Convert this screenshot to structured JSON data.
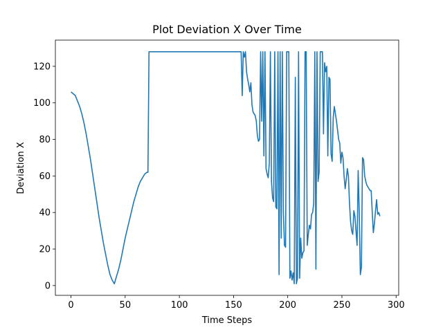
{
  "chart_data": {
    "type": "line",
    "title": "Plot Deviation X Over Time",
    "x_label": "Time Steps",
    "y_label": "Deviation X",
    "color": "#1f77b4",
    "x": [
      0,
      2,
      4,
      6,
      8,
      10,
      12,
      14,
      16,
      18,
      20,
      22,
      24,
      26,
      28,
      30,
      32,
      34,
      36,
      38,
      40,
      42,
      44,
      46,
      48,
      50,
      52,
      54,
      56,
      58,
      60,
      62,
      64,
      66,
      68,
      70,
      71,
      72,
      157,
      158,
      159,
      160,
      161,
      162,
      163,
      164,
      165,
      166,
      167,
      168,
      169,
      170,
      171,
      172,
      173,
      174,
      175,
      176,
      177,
      178,
      179,
      180,
      181,
      182,
      183,
      184,
      185,
      186,
      187,
      188,
      189,
      190,
      191,
      192,
      193,
      194,
      195,
      196,
      197,
      198,
      199,
      200,
      201,
      202,
      203,
      204,
      205,
      206,
      207,
      208,
      209,
      210,
      211,
      212,
      213,
      214,
      215,
      216,
      217,
      218,
      219,
      220,
      221,
      222,
      223,
      224,
      225,
      226,
      227,
      228,
      229,
      230,
      231,
      232,
      233,
      234,
      235,
      236,
      237,
      238,
      239,
      240,
      241,
      242,
      243,
      244,
      245,
      246,
      247,
      248,
      249,
      250,
      251,
      252,
      253,
      254,
      255,
      256,
      257,
      258,
      259,
      260,
      261,
      262,
      263,
      264,
      265,
      266,
      267,
      268,
      269,
      270,
      271,
      272,
      273,
      274,
      275,
      276,
      277,
      278,
      279,
      280,
      281,
      282,
      283,
      284,
      285
    ],
    "values": [
      106,
      105,
      104,
      101,
      98,
      94,
      89,
      83,
      76,
      69,
      61,
      53,
      45,
      37,
      30,
      23,
      17,
      11,
      6,
      3,
      1,
      5,
      9,
      14,
      20,
      26,
      31,
      36,
      41,
      46,
      50,
      54,
      57,
      59,
      61,
      62,
      62,
      128,
      128,
      104,
      128,
      125,
      128,
      117,
      113,
      110,
      106,
      111,
      99,
      95,
      94,
      93,
      90,
      82,
      79,
      80,
      128,
      90,
      128,
      71,
      128,
      64,
      61,
      59,
      67,
      128,
      57,
      48,
      46,
      128,
      43,
      42,
      128,
      6,
      128,
      26,
      128,
      40,
      22,
      21,
      128,
      128,
      128,
      4,
      8,
      3,
      7,
      1,
      114,
      1,
      4,
      128,
      4,
      26,
      15,
      18,
      19,
      128,
      128,
      22,
      28,
      33,
      31,
      39,
      40,
      45,
      128,
      9,
      128,
      57,
      62,
      128,
      128,
      128,
      83,
      122,
      117,
      120,
      71,
      114,
      113,
      72,
      68,
      92,
      98,
      94,
      90,
      85,
      80,
      78,
      67,
      73,
      70,
      60,
      53,
      58,
      64,
      60,
      45,
      35,
      30,
      28,
      41,
      38,
      30,
      22,
      63,
      40,
      6,
      10,
      70,
      69,
      60,
      57,
      55,
      54,
      53,
      52,
      52,
      40,
      29,
      34,
      41,
      47,
      39,
      40,
      38
    ],
    "xlim": [
      -14.4,
      302.4
    ],
    "xticks": [
      0,
      50,
      100,
      150,
      200,
      250,
      300
    ],
    "ylim": [
      -5.35,
      134.35
    ],
    "yticks": [
      0,
      20,
      40,
      60,
      80,
      100,
      120
    ]
  }
}
